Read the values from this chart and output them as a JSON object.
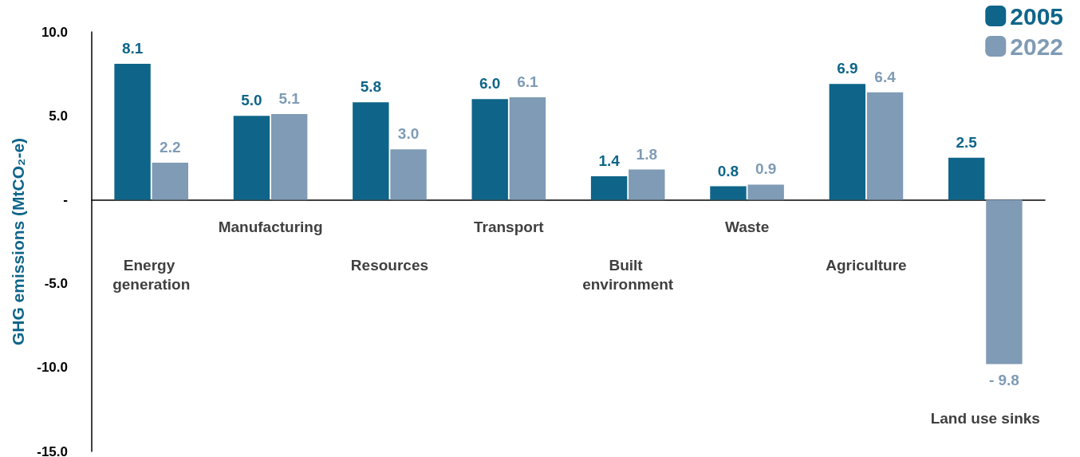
{
  "chart_data": {
    "type": "bar",
    "ylabel": "GHG emissions (MtCO₂-e)",
    "categories": [
      "Energy generation",
      "Manufacturing",
      "Resources",
      "Transport",
      "Built environment",
      "Waste",
      "Agriculture",
      "Land use sinks"
    ],
    "series": [
      {
        "name": "2005",
        "color": "#0e6589",
        "values": [
          8.1,
          5.0,
          5.8,
          6.0,
          1.4,
          0.8,
          6.9,
          2.5
        ],
        "value_labels": [
          "8.1",
          "5.0",
          "5.8",
          "6.0",
          "1.4",
          "0.8",
          "6.9",
          "2.5"
        ]
      },
      {
        "name": "2022",
        "color": "#7f9bb5",
        "values": [
          2.2,
          5.1,
          3.0,
          6.1,
          1.8,
          0.9,
          6.4,
          -9.8
        ],
        "value_labels": [
          "2.2",
          "5.1",
          "3.0",
          "6.1",
          "1.8",
          "0.9",
          "6.4",
          "- 9.8"
        ]
      }
    ],
    "ylim": [
      -15,
      10
    ],
    "yticks": [
      {
        "value": -15,
        "label": "-15.0"
      },
      {
        "value": -10,
        "label": "-10.0"
      },
      {
        "value": -5,
        "label": "-5.0"
      },
      {
        "value": 0,
        "label": "-"
      },
      {
        "value": 5,
        "label": "5.0"
      },
      {
        "value": 10,
        "label": "10.0"
      }
    ],
    "grid": false,
    "legend": "top right"
  }
}
